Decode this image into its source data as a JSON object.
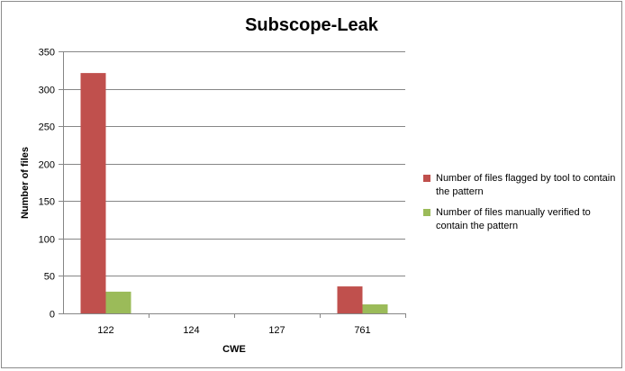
{
  "chart_data": {
    "type": "bar",
    "title": "Subscope-Leak",
    "xlabel": "CWE",
    "ylabel": "Number of files",
    "categories": [
      "122",
      "124",
      "127",
      "761"
    ],
    "series": [
      {
        "name": "Number of files flagged by tool to contain the pattern",
        "color": "#c0504d",
        "values": [
          321,
          0,
          0,
          36
        ]
      },
      {
        "name": "Number of files manually verified to contain the pattern",
        "color": "#9bbb59",
        "values": [
          29,
          0,
          0,
          12
        ]
      }
    ],
    "ylim": [
      0,
      350
    ],
    "yticks": [
      "0",
      "50",
      "100",
      "150",
      "200",
      "250",
      "300",
      "350"
    ],
    "grid": true,
    "legend_position": "right"
  }
}
